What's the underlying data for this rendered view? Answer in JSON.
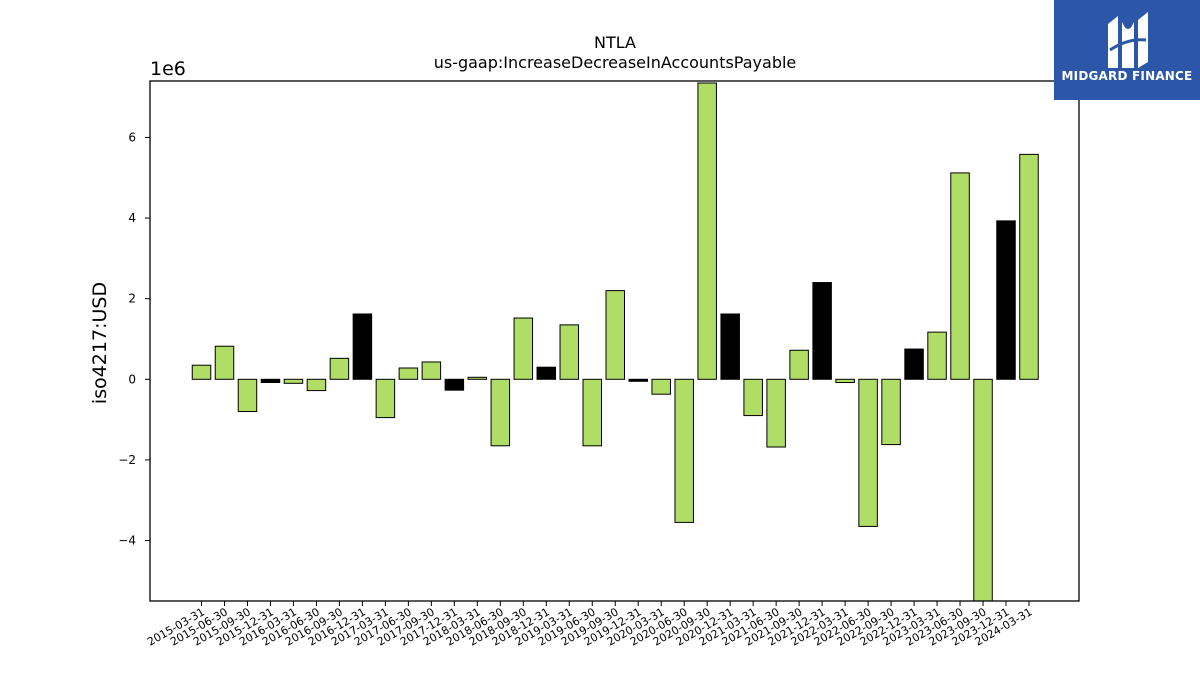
{
  "chart_data": {
    "type": "bar",
    "title": "NTLA",
    "subtitle": "us-gaap:IncreaseDecreaseInAccountsPayable",
    "ylabel": "iso4217:USD",
    "xlabel": "",
    "y_scale_label": "1e6",
    "ylim": [
      -5.5,
      7.4
    ],
    "yticks": [
      -4,
      -2,
      0,
      2,
      4,
      6
    ],
    "ytick_labels": [
      "−4",
      "−2",
      "0",
      "2",
      "4",
      "6"
    ],
    "grid": false,
    "colors": {
      "positive": "#b0dd66",
      "negative": "#b0dd66",
      "highlight": "#000000",
      "edge": "#000000"
    },
    "categories": [
      "2015-03-31",
      "2015-06-30",
      "2015-09-30",
      "2015-12-31",
      "2016-03-31",
      "2016-06-30",
      "2016-09-30",
      "2016-12-31",
      "2017-03-31",
      "2017-06-30",
      "2017-09-30",
      "2017-12-31",
      "2018-03-31",
      "2018-06-30",
      "2018-09-30",
      "2018-12-31",
      "2019-03-31",
      "2019-06-30",
      "2019-09-30",
      "2019-12-31",
      "2020-03-31",
      "2020-06-30",
      "2020-09-30",
      "2020-12-31",
      "2021-03-31",
      "2021-06-30",
      "2021-09-30",
      "2021-12-31",
      "2022-03-31",
      "2022-06-30",
      "2022-09-30",
      "2022-12-31",
      "2023-03-31",
      "2023-06-30",
      "2023-09-30",
      "2023-12-31",
      "2024-03-31"
    ],
    "values": [
      0.35,
      0.82,
      -0.8,
      -0.08,
      -0.1,
      -0.28,
      0.52,
      1.62,
      -0.95,
      0.28,
      0.43,
      -0.27,
      0.05,
      -1.65,
      1.52,
      0.3,
      1.35,
      -1.65,
      2.2,
      -0.05,
      -0.37,
      -3.55,
      7.35,
      1.62,
      -0.9,
      -1.68,
      0.72,
      2.4,
      -0.08,
      -3.65,
      -1.62,
      0.75,
      1.17,
      5.12,
      -5.5,
      3.93,
      5.58
    ],
    "highlight": [
      false,
      false,
      false,
      true,
      false,
      false,
      false,
      true,
      false,
      false,
      false,
      true,
      false,
      false,
      false,
      true,
      false,
      false,
      false,
      true,
      false,
      false,
      false,
      true,
      false,
      false,
      false,
      true,
      false,
      false,
      false,
      true,
      false,
      false,
      false,
      true,
      false
    ]
  },
  "logo": {
    "text": "MIDGARD FINANCE",
    "icon": "midgard-logo-icon",
    "background": "#2c57a8"
  }
}
